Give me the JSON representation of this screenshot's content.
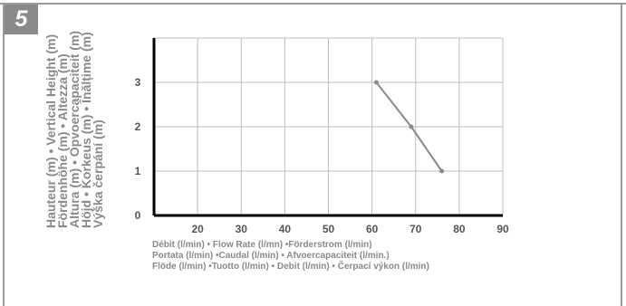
{
  "figure_number": "5",
  "colors": {
    "frame": "#9a9a9a",
    "grid": "#bdbdbd",
    "axis": "#000000",
    "line": "#8a8a8a",
    "tick_text": "#555555",
    "label_text": "#8a8a8a"
  },
  "y_axis_label_lines": [
    "Hauteur (m) • Vertical Height (m)",
    "Fördenhöhe (m) • Altezza (m)",
    "Altura (m) • Opvoercapaciteit (m)",
    "Höjd • Korkeus (m) • Înălțime (m)",
    "Výška čerpání (m)"
  ],
  "x_axis_label_lines": [
    "Débit (l/min) • Flow Rate (l/mn) •Förderstrom (l/min)",
    "Portata (l/min) •Caudal (l/min) • Afvoercapaciteit (l/min.)",
    "Flöde (l/min) •Tuotto (l/min) • Debit (l/min) • Čerpací výkon (l/min)"
  ],
  "chart_data": {
    "type": "line",
    "title": "",
    "xlabel": "Débit (l/min) • Flow Rate (l/mn) •Förderstrom (l/min) / Portata (l/min) •Caudal (l/min) • Afvoercapaciteit (l/min.) / Flöde (l/min) •Tuotto (l/min) • Debit (l/min) • Čerpací výkon (l/min)",
    "ylabel": "Hauteur (m) • Vertical Height (m) / Fördenhöhe (m) • Altezza (m) / Altura (m) • Opvoercapaciteit (m) / Höjd • Korkeus (m) • Înălțime (m) / Výška čerpání (m)",
    "xlim": [
      10,
      90
    ],
    "ylim": [
      0,
      4
    ],
    "x_ticks": [
      20,
      30,
      40,
      50,
      60,
      70,
      80,
      90
    ],
    "x_tick_labels": [
      "20",
      "30",
      "40",
      "50",
      "60",
      "70",
      "80",
      "90"
    ],
    "y_ticks": [
      0,
      1,
      2,
      3
    ],
    "y_tick_labels": [
      "0",
      "1",
      "2",
      "3"
    ],
    "grid": true,
    "series": [
      {
        "x": [
          61,
          69,
          76
        ],
        "y": [
          3,
          2,
          1
        ]
      }
    ]
  }
}
